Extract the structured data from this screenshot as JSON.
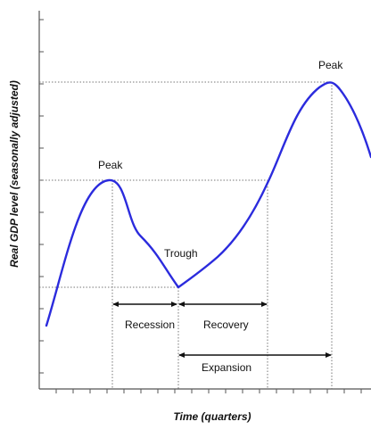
{
  "diagram": {
    "labels": {
      "peak_left": "Peak",
      "peak_right": "Peak",
      "trough": "Trough",
      "recession": "Recession",
      "recovery": "Recovery",
      "expansion": "Expansion"
    },
    "axes": {
      "y_label": "Real GDP level (seasonally adjusted)",
      "x_label": "Time (quarters)"
    },
    "colors": {
      "curve": "#2b2bdd",
      "axis": "#555555",
      "guide": "#777777",
      "text": "#111111"
    }
  }
}
